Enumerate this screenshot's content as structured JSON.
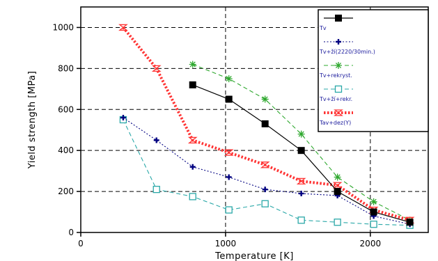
{
  "chart_data": {
    "type": "line",
    "xlabel": "Temperature [K]",
    "ylabel": "Yield strength [MPa]",
    "xlim": [
      0,
      2400
    ],
    "ylim": [
      0,
      1100
    ],
    "xticks": [
      0,
      1000,
      2000
    ],
    "yticks": [
      0,
      200,
      400,
      600,
      800,
      1000
    ],
    "xtick_labels": [
      "0",
      "1000",
      "2000"
    ],
    "ytick_labels": [
      "0",
      "200",
      "400",
      "600",
      "800",
      "1000"
    ],
    "x_grid_lines": [
      1000,
      2000
    ],
    "y_grid_lines": [
      200,
      400,
      600,
      800,
      1000
    ],
    "grid_style": "dashed",
    "legend_position": "top-right",
    "series": [
      {
        "name": "Tv",
        "color": "#000000",
        "line_style": "solid",
        "marker": "filled-square",
        "x": [
          773,
          1023,
          1273,
          1523,
          1773,
          2023,
          2273
        ],
        "y": [
          720,
          650,
          530,
          400,
          200,
          100,
          50
        ]
      },
      {
        "name": "Tv+ží(2220/30min.)",
        "color": "#000080",
        "line_style": "dotted",
        "marker": "plus",
        "x": [
          293,
          523,
          773,
          1023,
          1273,
          1523,
          1773,
          2023,
          2273
        ],
        "y": [
          560,
          450,
          320,
          270,
          210,
          190,
          180,
          80,
          40
        ]
      },
      {
        "name": "Tv+rekryst.",
        "color": "#2ea82e",
        "line_style": "dashed",
        "marker": "asterisk",
        "x": [
          773,
          1023,
          1273,
          1523,
          1773,
          2023,
          2273
        ],
        "y": [
          820,
          750,
          650,
          480,
          270,
          150,
          60
        ]
      },
      {
        "name": "Tv+ží+rekr.",
        "color": "#2aa8a8",
        "line_style": "dashed",
        "marker": "open-square",
        "x": [
          293,
          523,
          773,
          1023,
          1273,
          1523,
          1773,
          2023,
          2273
        ],
        "y": [
          550,
          210,
          175,
          110,
          140,
          60,
          50,
          40,
          35
        ]
      },
      {
        "name": "Tav+dez(Y)",
        "color": "#ff3333",
        "line_style": "thick-dotted",
        "marker": "hourglass",
        "x": [
          293,
          523,
          773,
          1023,
          1273,
          1523,
          1773,
          2023,
          2273
        ],
        "y": [
          1000,
          800,
          450,
          390,
          330,
          250,
          230,
          110,
          60
        ]
      }
    ]
  }
}
